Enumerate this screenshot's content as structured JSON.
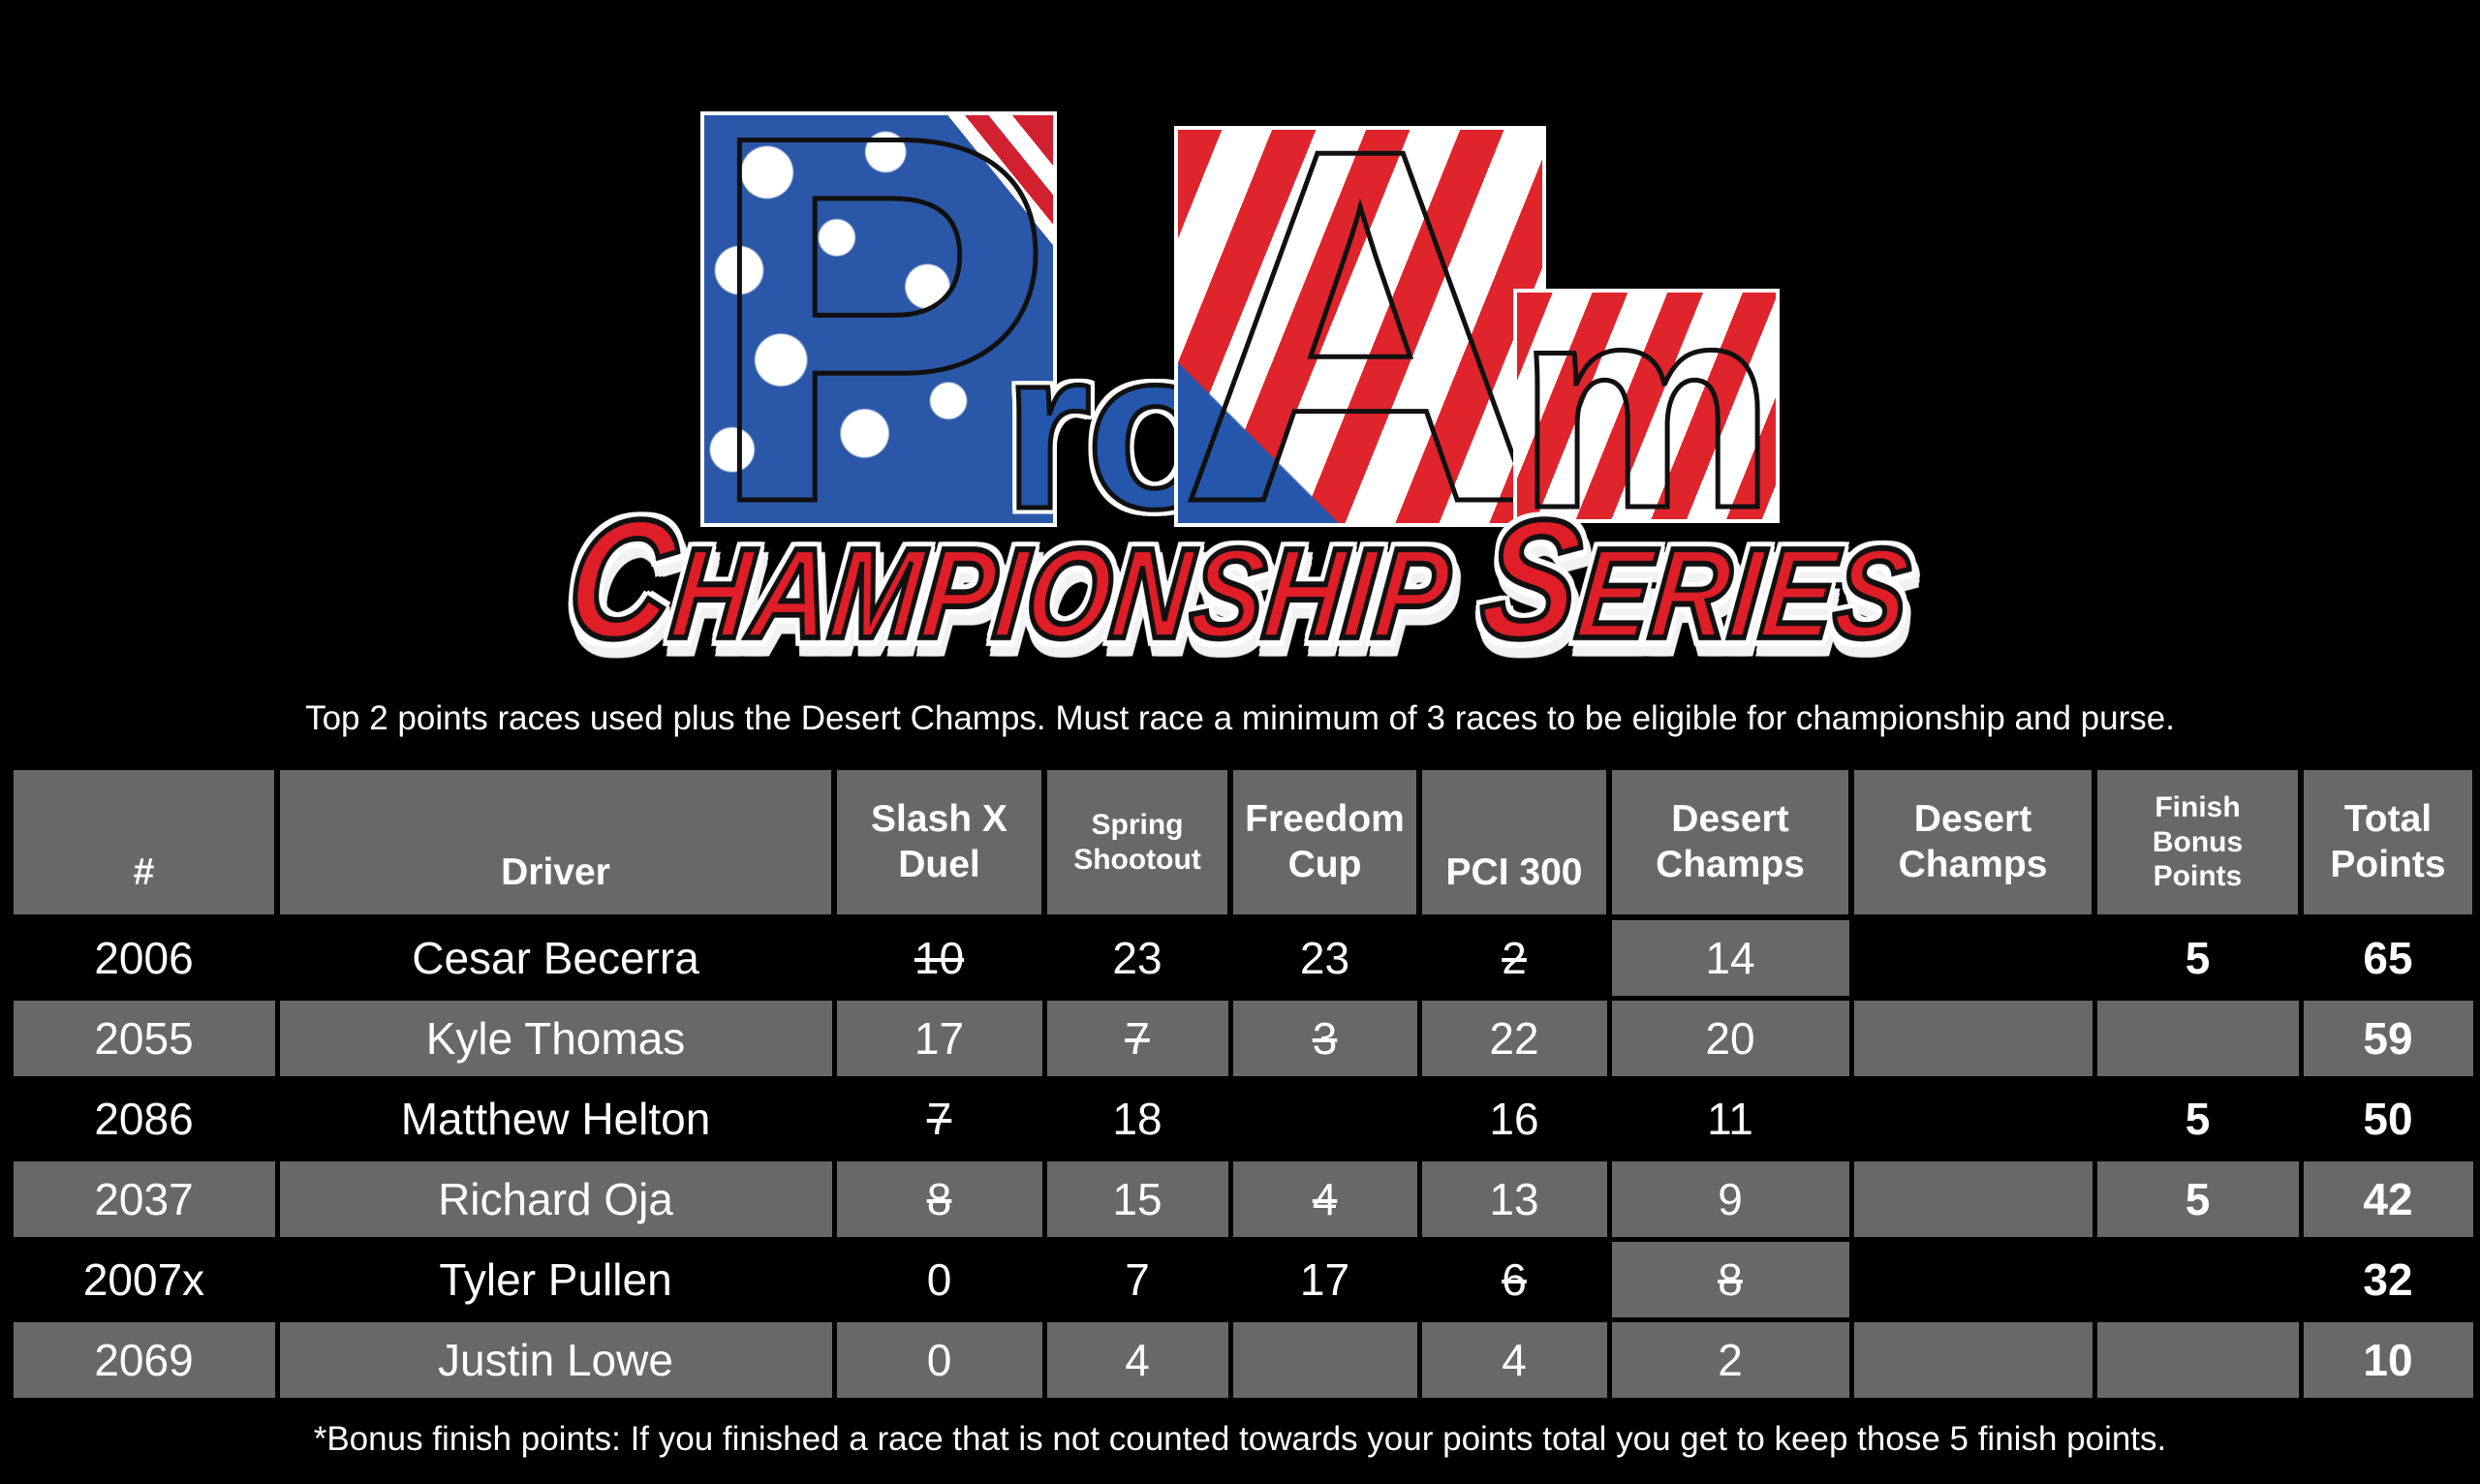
{
  "logo": {
    "word": {
      "p": "P",
      "ro": "ro",
      "a": "A",
      "m": "m"
    },
    "banner": {
      "c": "C",
      "hampionship": "HAMPIONSHIP",
      "s": "S",
      "eries": "ERIES"
    }
  },
  "note_top": "Top 2 points races used plus the Desert Champs.  Must race a minimum of 3 races to be eligible for championship and purse.",
  "note_bottom": "*Bonus finish points:  If you finished a race that is not counted towards your points total you get to keep those 5 finish points.",
  "colors": {
    "background": "#000000",
    "table_gray": "#686868",
    "text_white": "#ffffff",
    "flag_blue": "#2456ac",
    "flag_red": "#e0242c",
    "banner_red": "#e01e28"
  },
  "table": {
    "columns": [
      {
        "key": "num",
        "label": "#",
        "cls": "low"
      },
      {
        "key": "driver",
        "label": "Driver",
        "cls": "low"
      },
      {
        "key": "slashx",
        "label": "Slash X\nDuel",
        "cls": ""
      },
      {
        "key": "spring",
        "label": "Spring\nShootout",
        "cls": "small"
      },
      {
        "key": "freedom",
        "label": "Freedom\nCup",
        "cls": ""
      },
      {
        "key": "pci",
        "label": "PCI 300",
        "cls": "low"
      },
      {
        "key": "desert1",
        "label": "Desert\nChamps",
        "cls": ""
      },
      {
        "key": "desert2",
        "label": "Desert\nChamps",
        "cls": ""
      },
      {
        "key": "bonus",
        "label": "Finish\nBonus\nPoints",
        "cls": "small"
      },
      {
        "key": "total",
        "label": "Total\nPoints",
        "cls": ""
      }
    ],
    "rows": [
      {
        "num": "2006",
        "driver": "Cesar Becerra",
        "shade": "dark",
        "points": [
          {
            "v": "10",
            "struck": true
          },
          {
            "v": "23"
          },
          {
            "v": "23"
          },
          {
            "v": "2",
            "struck": true
          },
          {
            "v": "14",
            "hl": true
          },
          {
            "v": ""
          },
          {
            "v": "5",
            "bold": true
          },
          {
            "v": "65",
            "bold": true
          }
        ]
      },
      {
        "num": "2055",
        "driver": "Kyle Thomas",
        "shade": "gray",
        "points": [
          {
            "v": "17"
          },
          {
            "v": "7",
            "struck": true
          },
          {
            "v": "3",
            "struck": true
          },
          {
            "v": "22"
          },
          {
            "v": "20"
          },
          {
            "v": ""
          },
          {
            "v": ""
          },
          {
            "v": "59",
            "bold": true
          }
        ]
      },
      {
        "num": "2086",
        "driver": "Matthew Helton",
        "shade": "dark",
        "points": [
          {
            "v": "7",
            "struck": true
          },
          {
            "v": "18"
          },
          {
            "v": ""
          },
          {
            "v": "16"
          },
          {
            "v": "11"
          },
          {
            "v": ""
          },
          {
            "v": "5",
            "bold": true
          },
          {
            "v": "50",
            "bold": true
          }
        ]
      },
      {
        "num": "2037",
        "driver": "Richard Oja",
        "shade": "gray",
        "points": [
          {
            "v": "8",
            "struck": true
          },
          {
            "v": "15"
          },
          {
            "v": "4",
            "struck": true
          },
          {
            "v": "13"
          },
          {
            "v": "9"
          },
          {
            "v": ""
          },
          {
            "v": "5",
            "bold": true
          },
          {
            "v": "42",
            "bold": true
          }
        ]
      },
      {
        "num": "2007x",
        "driver": "Tyler Pullen",
        "shade": "dark",
        "points": [
          {
            "v": "0"
          },
          {
            "v": "7"
          },
          {
            "v": "17"
          },
          {
            "v": "6",
            "struck": true
          },
          {
            "v": "8",
            "struck": true,
            "hl": true
          },
          {
            "v": ""
          },
          {
            "v": ""
          },
          {
            "v": "32",
            "bold": true
          }
        ]
      },
      {
        "num": "2069",
        "driver": "Justin Lowe",
        "shade": "gray",
        "points": [
          {
            "v": "0"
          },
          {
            "v": "4"
          },
          {
            "v": ""
          },
          {
            "v": "4"
          },
          {
            "v": "2"
          },
          {
            "v": ""
          },
          {
            "v": ""
          },
          {
            "v": "10",
            "bold": true
          }
        ]
      }
    ]
  }
}
